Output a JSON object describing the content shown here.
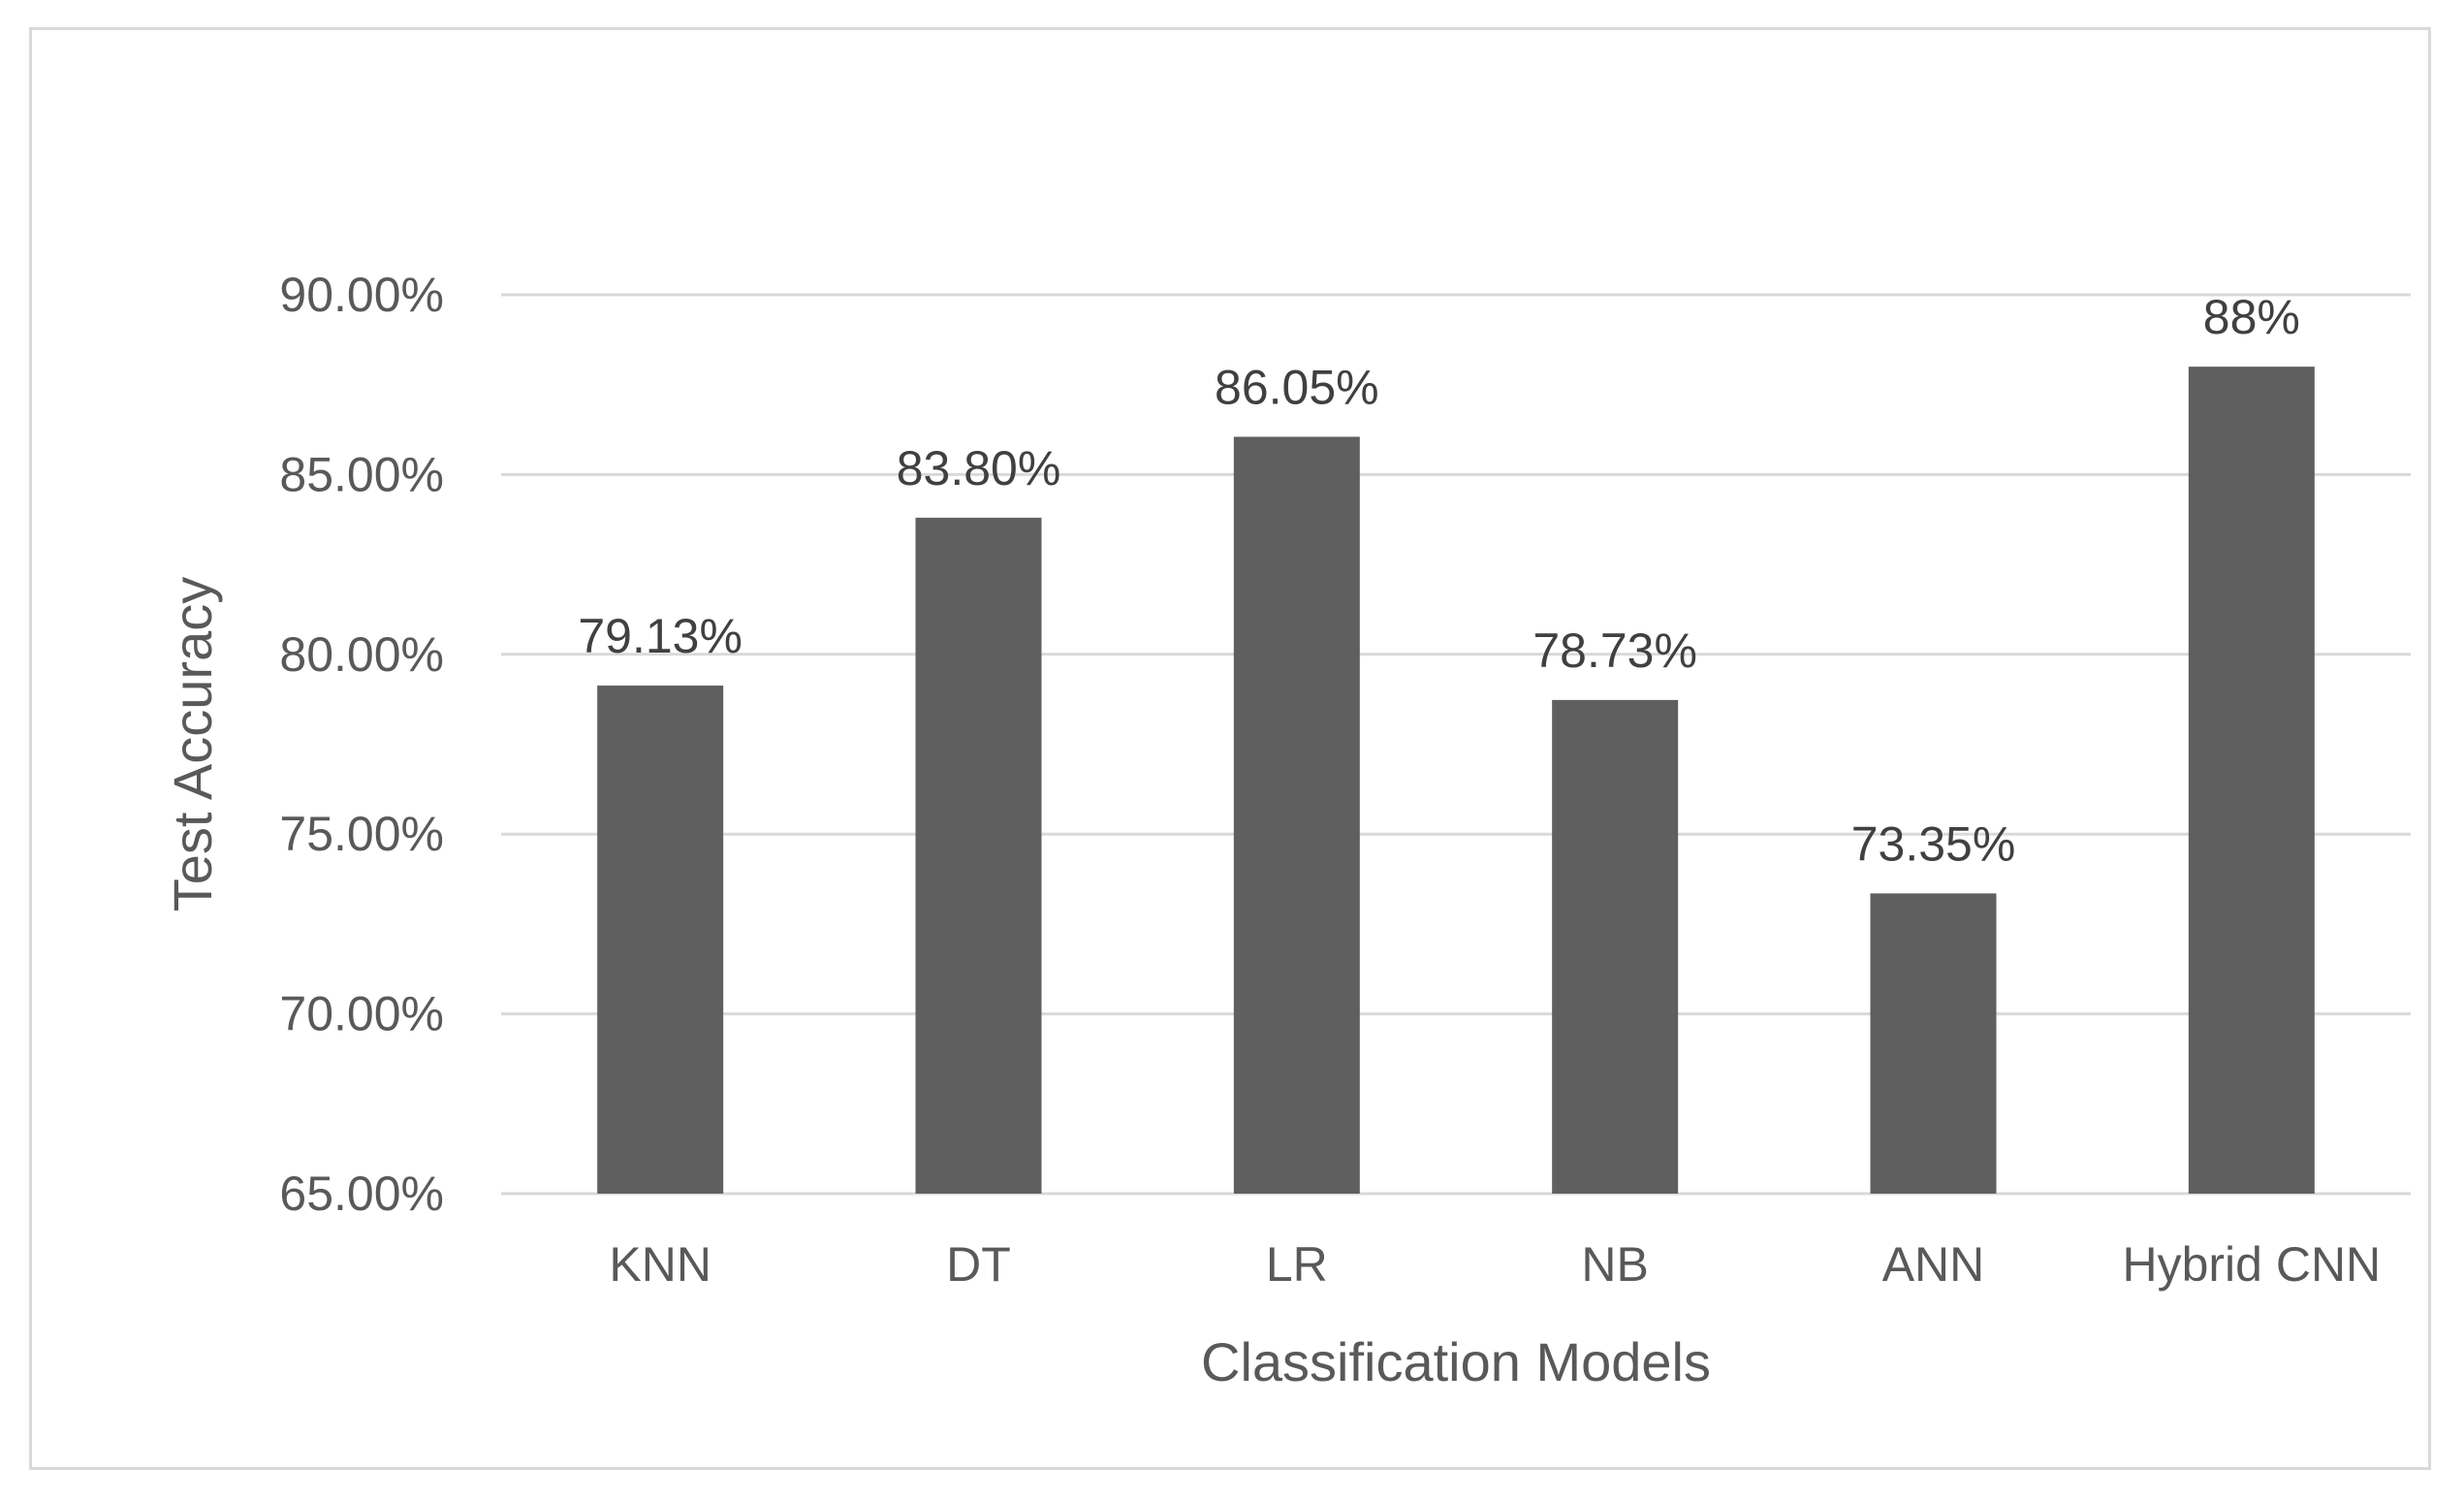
{
  "chart_data": {
    "type": "bar",
    "title": "",
    "xlabel": "Classification Models",
    "ylabel": "Test Accuracy",
    "categories": [
      "KNN",
      "DT",
      "LR",
      "NB",
      "ANN",
      "Hybrid CNN"
    ],
    "values": [
      79.13,
      83.8,
      86.05,
      78.73,
      73.35,
      88
    ],
    "data_labels": [
      "79.13%",
      "83.80%",
      "86.05%",
      "78.73%",
      "73.35%",
      "88%"
    ],
    "ylim": [
      65,
      90
    ],
    "yticks": [
      65,
      70,
      75,
      80,
      85,
      90
    ],
    "ytick_labels": [
      "65.00%",
      "70.00%",
      "75.00%",
      "80.00%",
      "85.00%",
      "90.00%"
    ],
    "grid": true,
    "legend": "none",
    "colors": {
      "bar": "#5f5f5f",
      "grid": "#d9d9d9",
      "axis_text": "#595959",
      "label_text": "#404040"
    }
  }
}
